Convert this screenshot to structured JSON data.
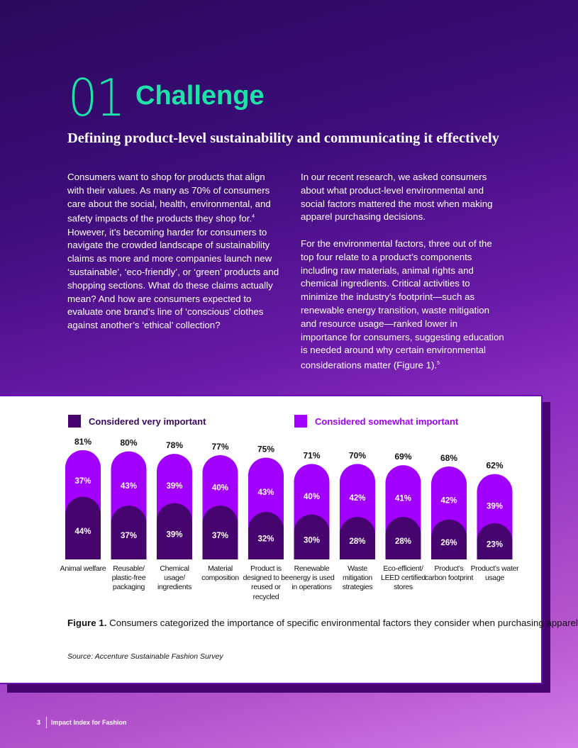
{
  "heading": {
    "number": "01",
    "title": "Challenge",
    "subtitle": "Defining product-level sustainability and communicating it effectively"
  },
  "body": {
    "left": "Consumers want to shop for products that align with their values. As many as 70% of consumers care about the social, health, environmental, and safety impacts of the products they shop for.",
    "left_sup": "4",
    "left_cont": " However, it’s becoming harder for consumers to navigate the crowded landscape of sustainability claims as more and more companies launch new ‘sustainable’, ‘eco-friendly’, or ‘green’ products and shopping sections. What do these claims actually mean? And how are consumers expected to evaluate one brand’s line of ‘conscious’ clothes against another’s ‘ethical’ collection?",
    "right_p1": "In our recent research, we asked consumers about what product-level environmental and social factors mattered the most when making apparel purchasing decisions.",
    "right_p2": "For the environmental factors, three out of the top four relate to a product’s components including raw materials, animal rights and chemical ingredients. Critical activities to minimize the industry’s footprint—such as renewable energy transition, waste mitigation and resource usage—ranked lower in importance for consumers, suggesting education is needed around why certain environmental considerations matter (Figure 1).",
    "right_sup": "5"
  },
  "chart_data": {
    "type": "bar",
    "stacked": true,
    "categories": [
      "Animal welfare",
      "Reusable/ plastic-free packaging",
      "Chemical usage/ ingredients",
      "Material composition",
      "Product is designed to be reused or recycled",
      "Renewable energy is used in operations",
      "Waste mitigation strategies",
      "Eco-efficient/ LEED certified stores",
      "Product’s carbon footprint",
      "Product’s water usage"
    ],
    "series": [
      {
        "name": "Considered very important",
        "color": "#46046f",
        "values": [
          44,
          37,
          39,
          37,
          32,
          30,
          28,
          28,
          26,
          23
        ]
      },
      {
        "name": "Considered somewhat important",
        "color": "#a100ff",
        "values": [
          37,
          43,
          39,
          40,
          43,
          40,
          42,
          41,
          42,
          39
        ]
      }
    ],
    "totals": [
      81,
      80,
      78,
      77,
      75,
      71,
      70,
      69,
      68,
      62
    ],
    "unit": "%",
    "legend": "top"
  },
  "figure": {
    "label": "Figure 1.",
    "caption": " Consumers categorized the importance of specific environmental factors they consider when purchasing apparel",
    "source": "Source: Accenture Sustainable Fashion Survey"
  },
  "footer": {
    "page": "3",
    "title": "Impact Index for Fashion"
  }
}
